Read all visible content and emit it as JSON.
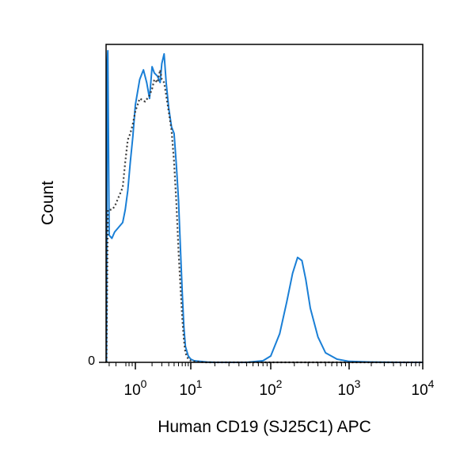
{
  "chart_data": {
    "type": "line",
    "title": "",
    "xlabel": "Human CD19 (SJ25C1) APC",
    "ylabel": "Count",
    "x_scale": "biexponential",
    "x_ticks": [
      {
        "base": "10",
        "exp": "0",
        "value": 1
      },
      {
        "base": "10",
        "exp": "1",
        "value": 10
      },
      {
        "base": "10",
        "exp": "2",
        "value": 100
      },
      {
        "base": "10",
        "exp": "3",
        "value": 1000
      },
      {
        "base": "10",
        "exp": "4",
        "value": 10000
      }
    ],
    "y_ticks": [
      {
        "label": "0",
        "value": 0
      }
    ],
    "xlim": [
      -0.6,
      10000
    ],
    "ylim": [
      0,
      100
    ],
    "grid": false,
    "colors": {
      "stained": "#1a7fd6",
      "control": "#3a3a3a"
    },
    "series": [
      {
        "style": "solid",
        "color": "#1a7fd6",
        "x": [
          -0.6,
          -0.57,
          -0.55,
          -0.5,
          -0.4,
          -0.3,
          -0.2,
          0,
          0.2,
          0.4,
          0.6,
          0.8,
          1,
          1.2,
          1.4,
          1.6,
          1.8,
          2,
          2.2,
          2.5,
          2.8,
          3,
          3.3,
          3.6,
          4,
          4.5,
          5,
          5.5,
          6,
          6.5,
          7,
          7.5,
          8,
          9,
          10,
          11,
          13,
          16,
          20,
          30,
          50,
          80,
          100,
          130,
          160,
          190,
          220,
          250,
          280,
          320,
          400,
          500,
          700,
          1000,
          2000,
          5000,
          10000
        ],
        "y": [
          0,
          95,
          98,
          40,
          39,
          41,
          42,
          44,
          48,
          54,
          63,
          71,
          81,
          89,
          92,
          88,
          83,
          93,
          91,
          90,
          88,
          94,
          97,
          88,
          80,
          74,
          72,
          62,
          51,
          36,
          22,
          11,
          5,
          2,
          1,
          0.5,
          0.3,
          0.1,
          0,
          0,
          0,
          0.5,
          2,
          9,
          19,
          28,
          33,
          32,
          26,
          17,
          8,
          3,
          1,
          0.3,
          0.1,
          0,
          0
        ]
      },
      {
        "style": "dotted",
        "color": "#3a3a3a",
        "x": [
          -0.6,
          -0.55,
          -0.5,
          -0.4,
          -0.3,
          -0.2,
          0,
          0.2,
          0.4,
          0.6,
          0.8,
          1,
          1.2,
          1.5,
          1.8,
          2,
          2.2,
          2.5,
          2.8,
          3,
          3.3,
          3.6,
          4,
          4.5,
          5,
          5.5,
          6,
          6.5,
          7,
          7.5,
          8,
          9,
          10,
          12,
          15,
          20,
          50,
          100,
          1000,
          10000
        ],
        "y": [
          0,
          48,
          48,
          48,
          49,
          51,
          55,
          63,
          70,
          72,
          75,
          79,
          83,
          82,
          84,
          86,
          89,
          88,
          92,
          89,
          88,
          84,
          79,
          73,
          63,
          50,
          35,
          24,
          14,
          7,
          3,
          1,
          0.5,
          0.2,
          0,
          0,
          0,
          0,
          0,
          0
        ]
      }
    ]
  }
}
